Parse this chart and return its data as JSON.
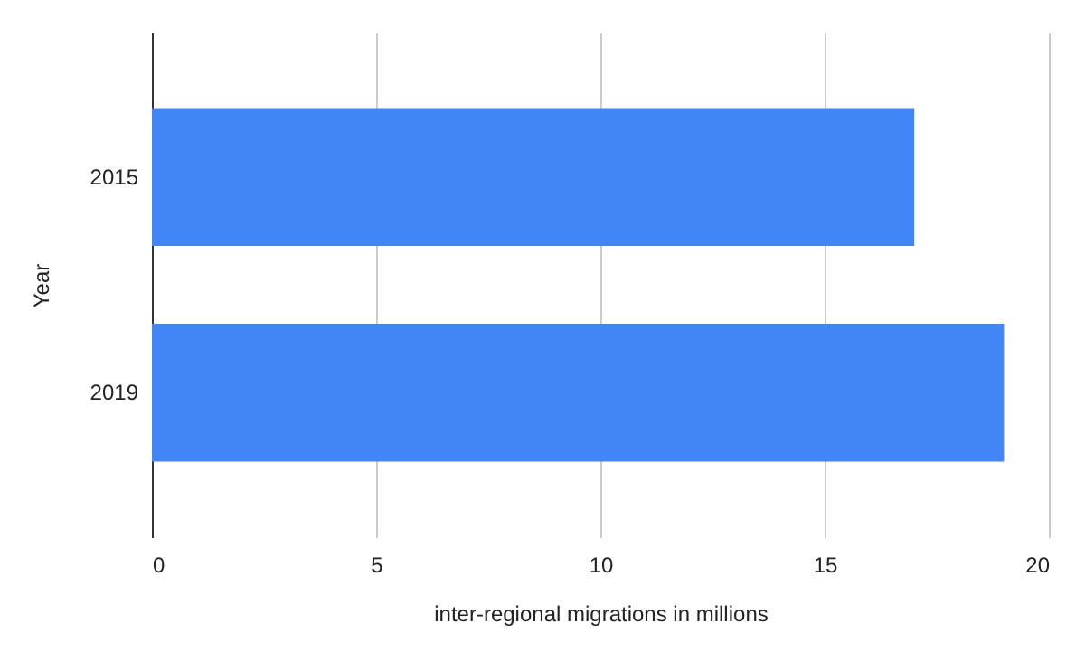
{
  "chart_data": {
    "type": "bar",
    "orientation": "horizontal",
    "xlabel": "inter-regional migrations in millions",
    "ylabel": "Year",
    "categories": [
      "2015",
      "2019"
    ],
    "values": [
      17,
      19
    ],
    "color": "#4285f4",
    "xlim": [
      0,
      20
    ],
    "xticks": [
      0,
      5,
      10,
      15,
      20
    ],
    "grid": "x"
  }
}
